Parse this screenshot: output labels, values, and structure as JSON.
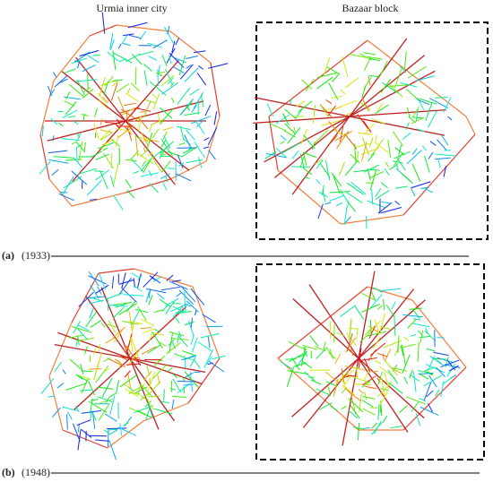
{
  "columns": [
    "Urmia inner city",
    "Bazaar block"
  ],
  "panels": [
    {
      "label": "(a)",
      "year": "(1933)"
    },
    {
      "label": "(b)",
      "year": "(1948)"
    }
  ]
}
